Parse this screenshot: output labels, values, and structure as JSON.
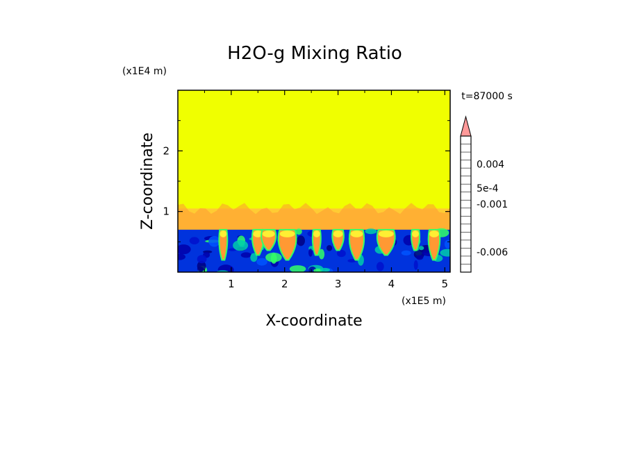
{
  "chart_data": {
    "type": "heatmap",
    "title": "H2O-g Mixing Ratio",
    "xlabel": "X-coordinate",
    "ylabel": "Z-coordinate",
    "x_scale_label": "(x1E5 m)",
    "y_scale_label": "(x1E4 m)",
    "time_label": "t=87000 s",
    "xlim": [
      0,
      5.1
    ],
    "ylim": [
      0,
      3.0
    ],
    "xticks": [
      1,
      2,
      3,
      4,
      5
    ],
    "yticks": [
      1,
      2
    ],
    "xtick_labels": [
      "1",
      "2",
      "3",
      "4",
      "5"
    ],
    "ytick_labels": [
      "1",
      "2"
    ],
    "field": {
      "upper_region": {
        "z_min": 1.05,
        "z_max": 3.0,
        "color": "#f0ff00"
      },
      "transition_band": {
        "z_min": 0.7,
        "z_max": 1.05,
        "color": "#ffcc33"
      },
      "lower_region": {
        "z_min": 0.0,
        "z_max": 0.7,
        "color": "#0033dd"
      },
      "plumes_x": [
        0.85,
        1.5,
        1.7,
        2.05,
        2.6,
        3.0,
        3.35,
        3.9,
        4.45,
        4.8
      ]
    },
    "colorbar": {
      "colors": [
        "#ff00aa",
        "#cc0099",
        "#990099",
        "#660099",
        "#000088",
        "#0000cc",
        "#0033ff",
        "#00cc99",
        "#33ff33",
        "#ffff00",
        "#ffcc00",
        "#ff9900",
        "#ff6600",
        "#ff3300",
        "#ff0000",
        "#ff6666",
        "#ff9999"
      ],
      "labels": [
        {
          "text": "0.004",
          "index": 13
        },
        {
          "text": "5e-4",
          "index": 10
        },
        {
          "text": "-0.001",
          "index": 8
        },
        {
          "text": "-0.006",
          "index": 2
        }
      ],
      "extend": "max"
    }
  }
}
